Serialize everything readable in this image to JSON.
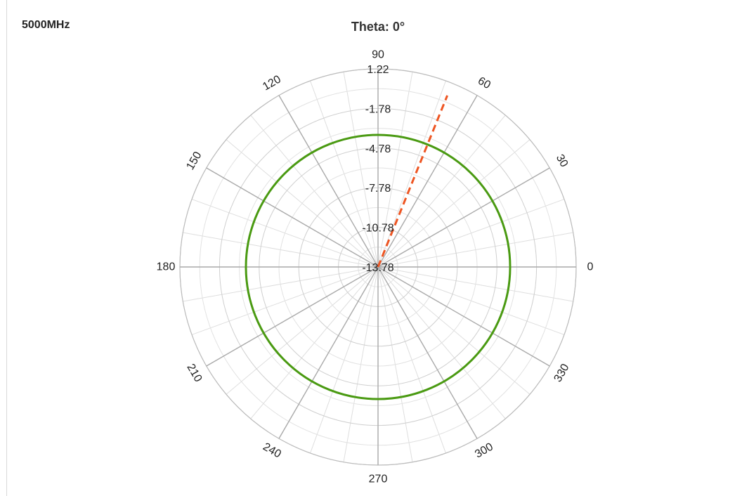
{
  "frequency_label": "5000MHz",
  "chart_data": {
    "type": "polar",
    "title": "Theta: 0°",
    "angular_ticks": [
      "0",
      "30",
      "60",
      "90",
      "120",
      "150",
      "180",
      "210",
      "240",
      "270",
      "300",
      "330"
    ],
    "radial_ticks": [
      "-13.78",
      "-10.78",
      "-7.78",
      "-4.78",
      "-1.78",
      "1.22"
    ],
    "radial_range": [
      -13.78,
      1.22
    ],
    "minor_angular_step_deg": 10,
    "grid": true,
    "series": [
      {
        "style": "solid",
        "color": "#4a9a12",
        "shape": "circle",
        "value": -3.78
      },
      {
        "style": "dashed",
        "color": "#ee5522",
        "shape": "ray",
        "angle_deg": 68,
        "from": -13.78,
        "to": 0.22
      }
    ]
  }
}
